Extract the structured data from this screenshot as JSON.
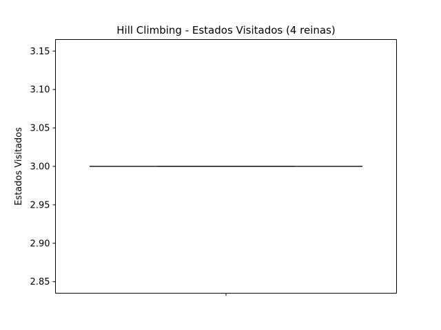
{
  "chart_data": {
    "type": "box",
    "title": "Hill Climbing - Estados Visitados (4 reinas)",
    "xlabel": "",
    "ylabel": "Estados Visitados",
    "ylim": [
      2.835,
      3.165
    ],
    "yticks": [
      2.85,
      2.9,
      2.95,
      3.0,
      3.05,
      3.1,
      3.15
    ],
    "ytick_labels": [
      "2.85",
      "2.90",
      "2.95",
      "3.00",
      "3.05",
      "3.10",
      "3.15"
    ],
    "grid": false,
    "categories": [
      ""
    ],
    "series": [
      {
        "whislo": 3.0,
        "q1": 3.0,
        "median": 3.0,
        "q3": 3.0,
        "whishi": 3.0
      }
    ],
    "colors": {
      "box_line": "#3f3f3f",
      "axis": "#000000"
    }
  }
}
